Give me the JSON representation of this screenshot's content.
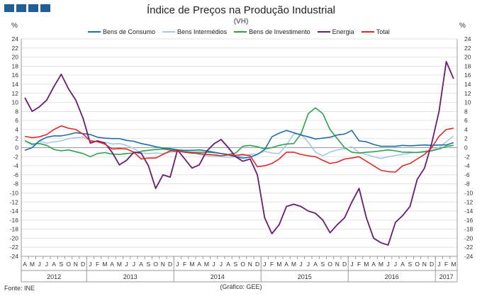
{
  "header": {
    "title": "Índice de Preços na Produção Industrial",
    "subtitle": "(VH)",
    "unit_left": "%",
    "unit_right": "%"
  },
  "footer": {
    "source": "Fonte: INE",
    "note": "(Gráfico: GEE)"
  },
  "colors": {
    "bens_consumo": "#1f6ea8",
    "bens_intermedios": "#a8c8e4",
    "bens_investimento": "#2da24a",
    "energia": "#6b1a72",
    "total": "#e0282a",
    "logo": "#1f5f96"
  },
  "chart_data": {
    "type": "line",
    "title": "Índice de Preços na Produção Industrial",
    "subtitle": "(VH)",
    "ylabel": "%",
    "ylim": [
      -24,
      24
    ],
    "yticks": [
      24,
      22,
      20,
      18,
      16,
      14,
      12,
      10,
      8,
      6,
      4,
      2,
      0,
      -2,
      -4,
      -6,
      -8,
      -10,
      -12,
      -14,
      -16,
      -18,
      -20,
      -22,
      -24
    ],
    "grid": true,
    "legend_position": "top",
    "month_labels": [
      "A",
      "M",
      "J",
      "J",
      "A",
      "S",
      "O",
      "N",
      "D",
      "J",
      "F",
      "M",
      "A",
      "M",
      "J",
      "J",
      "A",
      "S",
      "O",
      "N",
      "D",
      "J",
      "F",
      "M",
      "A",
      "M",
      "J",
      "J",
      "A",
      "S",
      "O",
      "N",
      "D",
      "J",
      "F",
      "M",
      "A",
      "M",
      "J",
      "J",
      "A",
      "S",
      "O",
      "N",
      "D",
      "J",
      "F",
      "M",
      "A",
      "M",
      "J",
      "J",
      "A",
      "S",
      "O",
      "N",
      "D",
      "J",
      "F",
      "M"
    ],
    "years": [
      {
        "label": "2012",
        "start": 0,
        "count": 9
      },
      {
        "label": "2013",
        "start": 9,
        "count": 12
      },
      {
        "label": "2014",
        "start": 21,
        "count": 12
      },
      {
        "label": "2015",
        "start": 33,
        "count": 12
      },
      {
        "label": "2016",
        "start": 45,
        "count": 12
      },
      {
        "label": "2017",
        "start": 57,
        "count": 3
      }
    ],
    "series": [
      {
        "name": "Bens de Consumo",
        "key": "bens_consumo",
        "values": [
          -0.6,
          0.0,
          1.5,
          2.3,
          2.6,
          2.6,
          2.9,
          3.3,
          3.1,
          2.9,
          2.3,
          2.1,
          2.0,
          2.0,
          1.6,
          1.4,
          0.9,
          0.6,
          0.2,
          -0.1,
          -0.2,
          -0.5,
          -0.6,
          -0.6,
          -0.5,
          -0.7,
          -1.0,
          -1.3,
          -1.6,
          -2.0,
          -2.3,
          -2.1,
          -1.5,
          -0.4,
          2.4,
          3.2,
          3.8,
          3.3,
          2.8,
          2.4,
          1.9,
          2.1,
          2.3,
          2.8,
          3.0,
          3.8,
          1.5,
          1.3,
          0.7,
          0.3,
          0.3,
          0.3,
          0.5,
          0.4,
          0.5,
          0.6,
          0.5,
          0.6,
          0.6,
          1.1
        ]
      },
      {
        "name": "Bens Intermédios",
        "key": "bens_intermedios",
        "values": [
          1.6,
          0.5,
          1.4,
          1.0,
          1.3,
          1.5,
          2.0,
          2.2,
          2.3,
          1.6,
          1.3,
          1.2,
          0.8,
          0.9,
          0.5,
          -0.2,
          -1.2,
          -1.3,
          -1.2,
          -1.3,
          -1.0,
          -0.9,
          -0.8,
          -1.0,
          -1.5,
          -1.8,
          -1.9,
          -2.0,
          -2.1,
          -2.0,
          -1.8,
          -1.5,
          -1.4,
          -0.8,
          -1.2,
          -1.3,
          0.6,
          3.0,
          3.0,
          1.2,
          -1.0,
          -1.8,
          -1.0,
          -0.5,
          -0.2,
          0.2,
          -1.1,
          -1.5,
          -2.0,
          -2.4,
          -2.0,
          -1.7,
          -1.5,
          -1.2,
          -1.0,
          -0.8,
          -0.5,
          0.0,
          1.3,
          2.6
        ]
      },
      {
        "name": "Bens de Investimento",
        "key": "bens_investimento",
        "values": [
          1.5,
          0.8,
          0.9,
          0.5,
          -0.4,
          -0.7,
          -0.5,
          -0.9,
          -1.3,
          -2.0,
          -1.3,
          -1.1,
          -1.4,
          -1.5,
          -1.3,
          -1.2,
          -0.8,
          -0.6,
          -0.4,
          -0.3,
          -0.5,
          -0.7,
          -0.9,
          -1.0,
          -1.0,
          -1.0,
          -1.1,
          -1.3,
          -1.5,
          -1.2,
          0.3,
          0.5,
          0.2,
          -0.3,
          0.0,
          0.5,
          0.8,
          0.9,
          3.0,
          7.5,
          8.8,
          7.5,
          4.0,
          2.0,
          0.0,
          -1.0,
          -1.2,
          -1.0,
          -0.9,
          -0.7,
          -0.5,
          -0.7,
          -1.0,
          -1.0,
          -1.1,
          -0.9,
          -0.7,
          -0.3,
          0.3,
          0.5
        ]
      },
      {
        "name": "Energia",
        "key": "energia",
        "values": [
          11.0,
          8.0,
          9.0,
          10.5,
          13.5,
          16.2,
          13.0,
          10.5,
          6.5,
          1.0,
          1.5,
          1.0,
          -1.0,
          -3.8,
          -2.8,
          -1.0,
          -1.2,
          -4.0,
          -9.0,
          -6.0,
          -6.5,
          -0.5,
          -2.5,
          -4.5,
          -3.8,
          -0.8,
          0.8,
          1.8,
          0.0,
          -2.0,
          -3.0,
          -2.5,
          -6.0,
          -15.5,
          -19.0,
          -17.0,
          -13.0,
          -12.5,
          -13.0,
          -14.0,
          -14.5,
          -16.0,
          -18.8,
          -17.0,
          -15.5,
          -12.0,
          -9.0,
          -15.5,
          -20.0,
          -21.0,
          -21.5,
          -16.5,
          -15.0,
          -13.0,
          -7.0,
          -4.5,
          1.0,
          8.0,
          19.0,
          15.2
        ]
      },
      {
        "name": "Total",
        "key": "total",
        "values": [
          2.5,
          2.2,
          2.4,
          2.9,
          4.0,
          4.8,
          4.3,
          4.0,
          3.0,
          1.5,
          1.3,
          0.8,
          -0.3,
          -0.2,
          -0.3,
          -1.0,
          -2.5,
          -2.3,
          -2.3,
          -1.5,
          -0.7,
          -0.8,
          -1.0,
          -1.2,
          -1.3,
          -1.5,
          -1.6,
          -1.8,
          -1.6,
          -1.7,
          -1.5,
          -1.8,
          -4.2,
          -4.0,
          -3.5,
          -2.5,
          -1.0,
          -1.0,
          -1.5,
          -1.8,
          -2.0,
          -2.8,
          -3.5,
          -3.2,
          -2.5,
          -2.3,
          -2.0,
          -3.0,
          -4.0,
          -5.0,
          -5.3,
          -5.4,
          -4.0,
          -3.5,
          -2.5,
          -1.5,
          0.0,
          2.5,
          4.0,
          4.3
        ]
      }
    ]
  }
}
